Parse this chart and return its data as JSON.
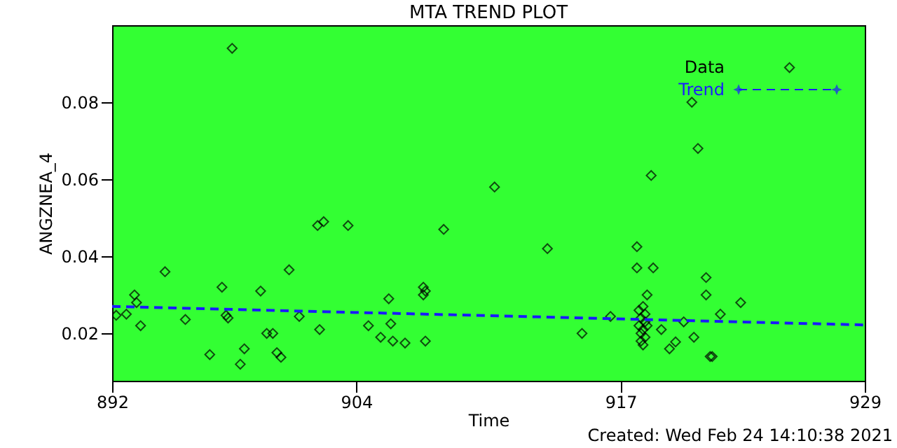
{
  "chart_data": {
    "type": "scatter",
    "title": "MTA TREND PLOT",
    "xlabel": "Time",
    "ylabel": "ANGZNEA_4",
    "xlim": [
      892,
      929
    ],
    "xticks": [
      892,
      904,
      917,
      929
    ],
    "ylim": [
      0.0077,
      0.1
    ],
    "yticks": [
      0.02,
      0.04,
      0.06,
      0.08
    ],
    "grid": false,
    "legend": "top right",
    "annotations": [
      "Created: Wed Feb 24 14:10:38 2021"
    ],
    "series": [
      {
        "name": "Data",
        "marker": "diamond",
        "color": "#000000",
        "x": [
          892.2,
          892.7,
          893.1,
          893.2,
          893.4,
          894.6,
          895.6,
          896.8,
          897.4,
          897.6,
          897.7,
          897.9,
          898.3,
          898.5,
          899.3,
          899.6,
          899.9,
          900.1,
          900.3,
          900.7,
          901.2,
          902.1,
          902.2,
          902.4,
          903.6,
          904.6,
          905.2,
          905.6,
          905.7,
          905.8,
          906.4,
          907.3,
          907.3,
          907.4,
          907.4,
          908.3,
          910.8,
          913.4,
          915.1,
          916.5,
          917.8,
          917.8,
          917.9,
          917.9,
          918.0,
          918.0,
          918.0,
          918.1,
          918.1,
          918.1,
          918.2,
          918.2,
          918.2,
          918.3,
          918.3,
          918.5,
          918.6,
          919.0,
          919.4,
          919.7,
          920.1,
          920.5,
          920.6,
          920.8,
          921.2,
          921.2,
          921.4,
          921.5,
          921.9,
          922.9,
          925.3
        ],
        "values": [
          0.0247,
          0.025,
          0.03,
          0.028,
          0.022,
          0.036,
          0.0236,
          0.0145,
          0.032,
          0.0247,
          0.024,
          0.094,
          0.012,
          0.016,
          0.031,
          0.02,
          0.02,
          0.015,
          0.0138,
          0.0365,
          0.0244,
          0.048,
          0.021,
          0.049,
          0.048,
          0.022,
          0.019,
          0.029,
          0.0225,
          0.018,
          0.0175,
          0.032,
          0.03,
          0.031,
          0.018,
          0.047,
          0.058,
          0.042,
          0.02,
          0.0244,
          0.0425,
          0.037,
          0.026,
          0.022,
          0.018,
          0.024,
          0.02,
          0.027,
          0.021,
          0.017,
          0.023,
          0.019,
          0.025,
          0.03,
          0.022,
          0.061,
          0.037,
          0.021,
          0.016,
          0.0178,
          0.023,
          0.08,
          0.019,
          0.068,
          0.0345,
          0.03,
          0.014,
          0.014,
          0.025,
          0.028,
          0.089
        ]
      },
      {
        "name": "Trend",
        "type": "line",
        "line_style": "dashed",
        "color": "#1a1aff",
        "x": [
          892,
          929
        ],
        "values": [
          0.027,
          0.0222
        ]
      }
    ]
  }
}
